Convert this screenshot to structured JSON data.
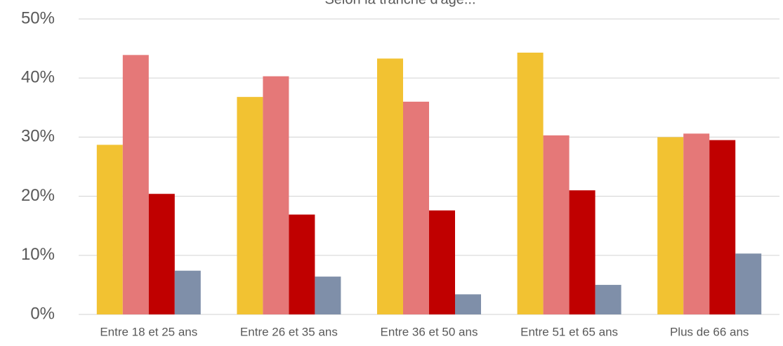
{
  "chart_data": {
    "type": "bar",
    "title": "Selon la tranche d'âge...",
    "categories": [
      "Entre 18 et 25 ans",
      "Entre 26 et 35 ans",
      "Entre 36 et 50 ans",
      "Entre 51 et 65 ans",
      "Plus de 66 ans"
    ],
    "series": [
      {
        "color": "#f2c232",
        "values": [
          28.7,
          36.8,
          43.3,
          44.3,
          30.0
        ]
      },
      {
        "color": "#e57878",
        "values": [
          43.9,
          40.3,
          36.0,
          30.3,
          30.6
        ]
      },
      {
        "color": "#c00000",
        "values": [
          20.4,
          16.9,
          17.6,
          21.0,
          29.5
        ]
      },
      {
        "color": "#7f8fa9",
        "values": [
          7.4,
          6.4,
          3.4,
          5.0,
          10.3
        ]
      }
    ],
    "ylim": [
      0,
      50
    ],
    "yticks": [
      {
        "value": 0,
        "label": "0%"
      },
      {
        "value": 10,
        "label": "10%"
      },
      {
        "value": 20,
        "label": "20%"
      },
      {
        "value": 30,
        "label": "30%"
      },
      {
        "value": 40,
        "label": "40%"
      },
      {
        "value": 50,
        "label": "50%"
      }
    ],
    "grid": true
  }
}
